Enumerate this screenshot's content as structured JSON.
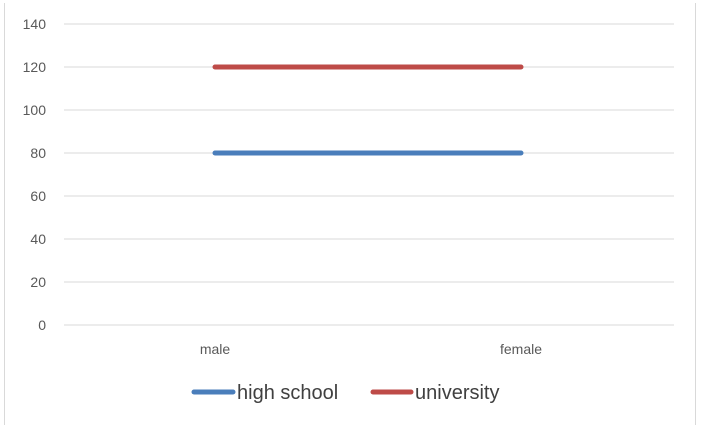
{
  "chart_data": {
    "type": "line",
    "categories": [
      "male",
      "female"
    ],
    "series": [
      {
        "name": "high school",
        "values": [
          80,
          80
        ],
        "color": "#4a7ebb"
      },
      {
        "name": "university",
        "values": [
          120,
          120
        ],
        "color": "#be4b48"
      }
    ],
    "ylim": [
      0,
      140
    ],
    "yticks": [
      0,
      20,
      40,
      60,
      80,
      100,
      120,
      140
    ],
    "grid": true,
    "legend": "bottom",
    "colors": {
      "grid": "#d9d9d9",
      "axis_text": "#595959",
      "legend_text": "#404040"
    }
  }
}
